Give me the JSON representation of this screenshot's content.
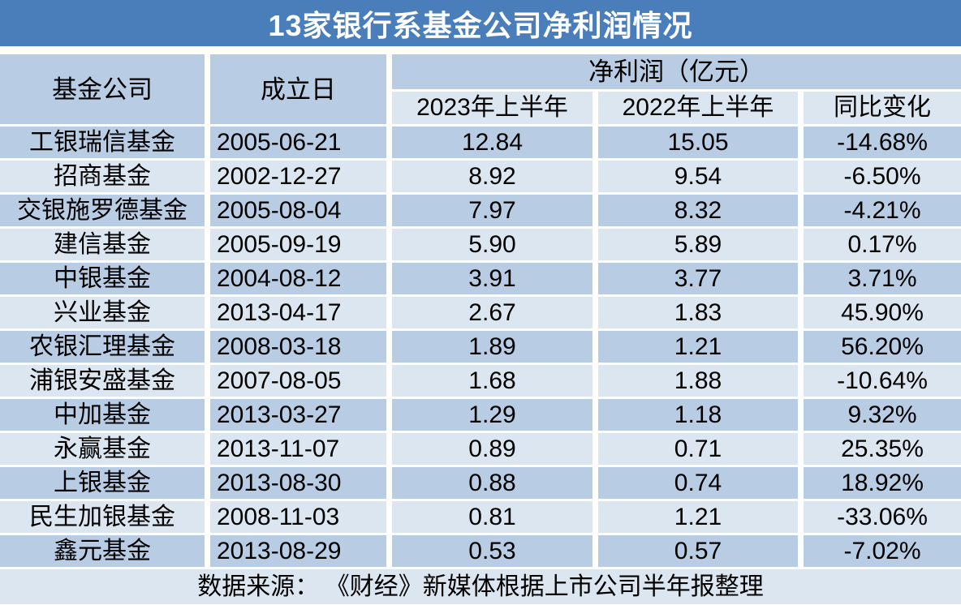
{
  "title": "13家银行系基金公司净利润情况",
  "colors": {
    "title": "#4a7ebb",
    "title_text": "#ffffff",
    "dark": "#b8cce4",
    "light": "#dce6f1",
    "text": "#000000"
  },
  "chart_data": {
    "type": "table",
    "title": "13家银行系基金公司净利润情况",
    "column_group_header": "净利润（亿元）",
    "columns": [
      "基金公司",
      "成立日",
      "2023年上半年",
      "2022年上半年",
      "同比变化"
    ],
    "rows": [
      [
        "工银瑞信基金",
        "2005-06-21",
        "12.84",
        "15.05",
        "-14.68%"
      ],
      [
        "招商基金",
        "2002-12-27",
        "8.92",
        "9.54",
        "-6.50%"
      ],
      [
        "交银施罗德基金",
        "2005-08-04",
        "7.97",
        "8.32",
        "-4.21%"
      ],
      [
        "建信基金",
        "2005-09-19",
        "5.90",
        "5.89",
        "0.17%"
      ],
      [
        "中银基金",
        "2004-08-12",
        "3.91",
        "3.77",
        "3.71%"
      ],
      [
        "兴业基金",
        "2013-04-17",
        "2.67",
        "1.83",
        "45.90%"
      ],
      [
        "农银汇理基金",
        "2008-03-18",
        "1.89",
        "1.21",
        "56.20%"
      ],
      [
        "浦银安盛基金",
        "2007-08-05",
        "1.68",
        "1.88",
        "-10.64%"
      ],
      [
        "中加基金",
        "2013-03-27",
        "1.29",
        "1.18",
        "9.32%"
      ],
      [
        "永赢基金",
        "2013-11-07",
        "0.89",
        "0.71",
        "25.35%"
      ],
      [
        "上银基金",
        "2013-08-30",
        "0.88",
        "0.74",
        "18.92%"
      ],
      [
        "民生加银基金",
        "2008-11-03",
        "0.81",
        "1.21",
        "-33.06%"
      ],
      [
        "鑫元基金",
        "2013-08-29",
        "0.53",
        "0.57",
        "-7.02%"
      ]
    ],
    "footer": "数据来源： 《财经》新媒体根据上市公司半年报整理"
  }
}
